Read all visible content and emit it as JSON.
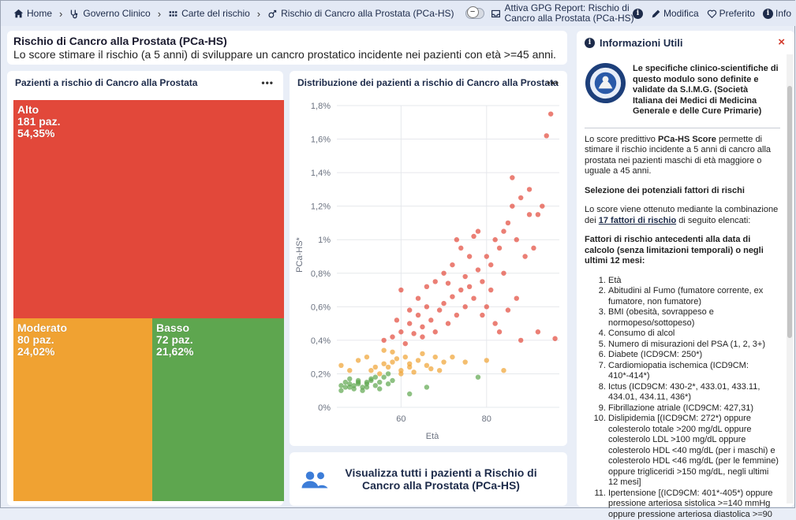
{
  "breadcrumbs": [
    {
      "label": "Home",
      "icon": "home-icon"
    },
    {
      "label": "Governo Clinico",
      "icon": "stethoscope-icon"
    },
    {
      "label": "Carte del rischio",
      "icon": "grid-icon"
    },
    {
      "label": "Rischio di Cancro alla Prostata (PCa-HS)",
      "icon": "male-icon"
    }
  ],
  "toolbar": {
    "attiva_label": "Attiva GPG Report: Rischio di Cancro alla Prostata (PCa-HS)",
    "info_circle_icon": "info-circle-icon",
    "modifica_label": "Modifica",
    "preferito_label": "Preferito",
    "info_label": "Info"
  },
  "header": {
    "title": "Rischio di Cancro alla Prostata (PCa-HS)",
    "subtitle": "Lo score stimare il rischio (a 5 anni) di sviluppare un cancro prostatico incidente nei pazienti con età >=45 anni."
  },
  "treemap": {
    "title": "Pazienti a rischio di Cancro alla Prostata",
    "menu_label": "•••",
    "tiles": [
      {
        "name": "Alto",
        "count": "181 paz.",
        "pct": "54,35%",
        "color": "#e2483a"
      },
      {
        "name": "Moderato",
        "count": "80 paz.",
        "pct": "24,02%",
        "color": "#f0a232"
      },
      {
        "name": "Basso",
        "count": "72 paz.",
        "pct": "21,62%",
        "color": "#5ea64f"
      }
    ]
  },
  "scatter": {
    "title": "Distribuzione dei pazienti a rischio di Cancro alla Prostata",
    "menu_label": "•••"
  },
  "chart_data": {
    "type": "scatter",
    "title": "Distribuzione dei pazienti a rischio di Cancro alla Prostata",
    "xlabel": "Età",
    "ylabel": "PCa-HS*",
    "xlim": [
      45,
      97
    ],
    "ylim": [
      0,
      1.8
    ],
    "y_ticks": [
      "0%",
      "0,2%",
      "0,4%",
      "0,6%",
      "0,8%",
      "1%",
      "1,2%",
      "1,4%",
      "1,6%",
      "1,8%"
    ],
    "x_ticks": [
      "60",
      "80"
    ],
    "grid": true,
    "series": [
      {
        "name": "Basso",
        "color": "#5ea64f",
        "points": [
          [
            46,
            0.13
          ],
          [
            47,
            0.12
          ],
          [
            48,
            0.14
          ],
          [
            49,
            0.13
          ],
          [
            50,
            0.15
          ],
          [
            51,
            0.12
          ],
          [
            52,
            0.14
          ],
          [
            53,
            0.16
          ],
          [
            54,
            0.13
          ],
          [
            46,
            0.1
          ],
          [
            47,
            0.15
          ],
          [
            49,
            0.11
          ],
          [
            50,
            0.16
          ],
          [
            52,
            0.12
          ],
          [
            53,
            0.17
          ],
          [
            55,
            0.15
          ],
          [
            56,
            0.18
          ],
          [
            57,
            0.2
          ],
          [
            48,
            0.17
          ],
          [
            51,
            0.1
          ],
          [
            54,
            0.18
          ],
          [
            58,
            0.16
          ],
          [
            62,
            0.08
          ],
          [
            66,
            0.12
          ],
          [
            78,
            0.18
          ],
          [
            48,
            0.12
          ],
          [
            50,
            0.14
          ],
          [
            52,
            0.15
          ],
          [
            55,
            0.11
          ],
          [
            57,
            0.14
          ]
        ]
      },
      {
        "name": "Moderato",
        "color": "#f0a232",
        "points": [
          [
            46,
            0.25
          ],
          [
            48,
            0.22
          ],
          [
            50,
            0.28
          ],
          [
            52,
            0.3
          ],
          [
            54,
            0.24
          ],
          [
            56,
            0.26
          ],
          [
            58,
            0.27
          ],
          [
            60,
            0.22
          ],
          [
            61,
            0.3
          ],
          [
            62,
            0.26
          ],
          [
            64,
            0.28
          ],
          [
            66,
            0.25
          ],
          [
            67,
            0.23
          ],
          [
            68,
            0.3
          ],
          [
            70,
            0.27
          ],
          [
            72,
            0.3
          ],
          [
            56,
            0.34
          ],
          [
            58,
            0.33
          ],
          [
            53,
            0.22
          ],
          [
            57,
            0.24
          ],
          [
            59,
            0.29
          ],
          [
            63,
            0.21
          ],
          [
            65,
            0.32
          ],
          [
            69,
            0.22
          ],
          [
            75,
            0.27
          ],
          [
            80,
            0.28
          ],
          [
            84,
            0.22
          ],
          [
            55,
            0.2
          ],
          [
            60,
            0.2
          ],
          [
            62,
            0.24
          ]
        ]
      },
      {
        "name": "Alto",
        "color": "#e2483a",
        "points": [
          [
            56,
            0.4
          ],
          [
            58,
            0.42
          ],
          [
            60,
            0.45
          ],
          [
            61,
            0.38
          ],
          [
            62,
            0.5
          ],
          [
            63,
            0.44
          ],
          [
            64,
            0.55
          ],
          [
            65,
            0.48
          ],
          [
            66,
            0.6
          ],
          [
            67,
            0.52
          ],
          [
            68,
            0.45
          ],
          [
            69,
            0.58
          ],
          [
            70,
            0.62
          ],
          [
            71,
            0.5
          ],
          [
            72,
            0.66
          ],
          [
            73,
            0.55
          ],
          [
            74,
            0.7
          ],
          [
            75,
            0.6
          ],
          [
            76,
            0.72
          ],
          [
            77,
            0.65
          ],
          [
            78,
            0.82
          ],
          [
            79,
            0.75
          ],
          [
            80,
            0.9
          ],
          [
            81,
            0.85
          ],
          [
            82,
            1.0
          ],
          [
            83,
            0.95
          ],
          [
            84,
            1.05
          ],
          [
            85,
            1.1
          ],
          [
            86,
            1.2
          ],
          [
            87,
            1.0
          ],
          [
            88,
            1.25
          ],
          [
            89,
            0.9
          ],
          [
            90,
            1.15
          ],
          [
            91,
            0.95
          ],
          [
            92,
            0.45
          ],
          [
            93,
            1.2
          ],
          [
            95,
            1.75
          ],
          [
            94,
            1.62
          ],
          [
            86,
            1.37
          ],
          [
            60,
            0.7
          ],
          [
            64,
            0.65
          ],
          [
            66,
            0.72
          ],
          [
            70,
            0.8
          ],
          [
            72,
            0.85
          ],
          [
            74,
            0.95
          ],
          [
            76,
            0.9
          ],
          [
            78,
            1.05
          ],
          [
            80,
            0.6
          ],
          [
            83,
            0.45
          ],
          [
            88,
            0.4
          ],
          [
            92,
            1.15
          ],
          [
            62,
            0.58
          ],
          [
            68,
            0.75
          ],
          [
            73,
            1.0
          ],
          [
            77,
            1.02
          ],
          [
            81,
            0.7
          ],
          [
            84,
            0.8
          ],
          [
            87,
            0.65
          ],
          [
            90,
            1.3
          ],
          [
            96,
            0.41
          ],
          [
            59,
            0.52
          ],
          [
            65,
            0.42
          ],
          [
            71,
            0.74
          ],
          [
            75,
            0.78
          ],
          [
            79,
            0.55
          ],
          [
            82,
            0.5
          ],
          [
            85,
            0.58
          ]
        ]
      }
    ]
  },
  "cta": {
    "text": "Visualizza tutti i pazienti a Rischio di Cancro alla Prostata (PCa-HS)",
    "icon": "users-icon"
  },
  "info": {
    "title": "Informazioni Utili",
    "close": "×",
    "seal_text": "Le specifiche clinico-scientifiche di questo modulo sono definite e validate da S.I.M.G. (Società Italiana dei Medici di Medicina Generale e delle Cure Primarie)",
    "p1_pre": "Lo score predittivo ",
    "p1_bold": "PCa-HS Score",
    "p1_post": " permette di stimare il rischio incidente a 5 anni di cancro alla prostata nei pazienti maschi di età maggiore o uguale a 45 anni.",
    "h2": "Selezione dei potenziali fattori di rischi",
    "p2_pre": "Lo score viene ottenuto mediante la combinazione dei ",
    "p2_link": "17 fattori di rischio",
    "p2_post": " di seguito elencati:",
    "h3": "Fattori di rischio antecedenti alla data di calcolo (senza limitazioni temporali) o negli ultimi 12 mesi:",
    "list": [
      "Età",
      "Abitudini al Fumo (fumatore corrente, ex fumatore, non fumatore)",
      "BMI (obesità, sovrappeso e normopeso/sottopeso)",
      "Consumo di alcol",
      "Numero di misurazioni del PSA (1, 2, 3+)",
      "Diabete (ICD9CM: 250*)",
      "Cardiomiopatia ischemica (ICD9CM: 410*-414*)",
      "Ictus (ICD9CM: 430-2*, 433.01, 433.11, 434.01, 434.11, 436*)",
      "Fibrillazione atriale (ICD9CM: 427,31)",
      "Dislipidemia [(ICD9CM: 272*) oppure colesterolo totale >200 mg/dL oppure colesterolo LDL >100 mg/dL oppure colesterolo HDL <40 mg/dL (per i maschi) e colesterolo HDL <46 mg/dL (per le femmine) oppure trigliceridi >150 mg/dL, negli ultimi 12 mesi]",
      "Ipertensione [(ICD9CM: 401*-405*) oppure pressione arteriosa sistolica >=140 mmHg oppure pressione arteriosa diastolica >=90"
    ]
  }
}
